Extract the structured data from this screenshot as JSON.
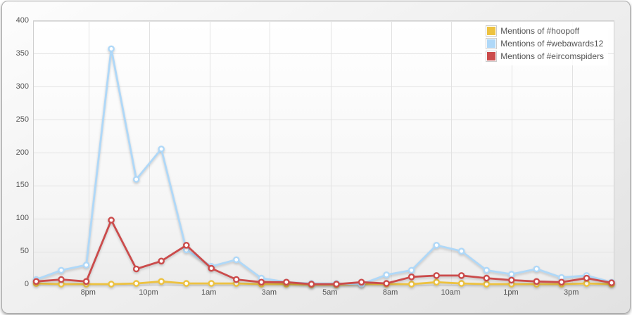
{
  "chart_data": {
    "type": "line",
    "title": "",
    "xlabel": "",
    "ylabel": "",
    "ylim": [
      0,
      400
    ],
    "y_ticks": [
      0,
      50,
      100,
      150,
      200,
      250,
      300,
      350,
      400
    ],
    "x_tick_labels": [
      "8pm",
      "10pm",
      "1am",
      "3am",
      "5am",
      "8am",
      "10am",
      "1pm",
      "3pm"
    ],
    "x_tick_positions_pct": [
      9.5,
      19.9,
      30.3,
      40.7,
      51.2,
      61.6,
      72.0,
      82.4,
      92.8
    ],
    "num_points": 24,
    "grid": true,
    "legend_position": "top-right",
    "point_style": "circle-white-fill",
    "series": [
      {
        "name": "Mentions of #hoopoff",
        "color": "#edc240",
        "values": [
          2,
          1,
          1,
          1,
          2,
          5,
          2,
          2,
          2,
          1,
          1,
          0,
          0,
          1,
          1,
          1,
          4,
          2,
          1,
          1,
          1,
          1,
          2,
          1
        ]
      },
      {
        "name": "Mentions of #webawards12",
        "color": "#afd8f8",
        "values": [
          8,
          22,
          30,
          358,
          160,
          206,
          53,
          28,
          38,
          10,
          4,
          2,
          2,
          1,
          15,
          22,
          60,
          51,
          22,
          16,
          24,
          11,
          14,
          4
        ]
      },
      {
        "name": "Mentions of #eircomspiders",
        "color": "#cb4b4b",
        "values": [
          5,
          8,
          5,
          98,
          24,
          36,
          60,
          25,
          8,
          4,
          4,
          1,
          1,
          4,
          2,
          12,
          14,
          14,
          10,
          7,
          5,
          4,
          10,
          3
        ]
      }
    ],
    "colors": {
      "grid_line": "#e2e2e2",
      "plot_border": "#cfcfcf",
      "tick_text": "#545454",
      "point_fill": "#ffffff"
    }
  }
}
